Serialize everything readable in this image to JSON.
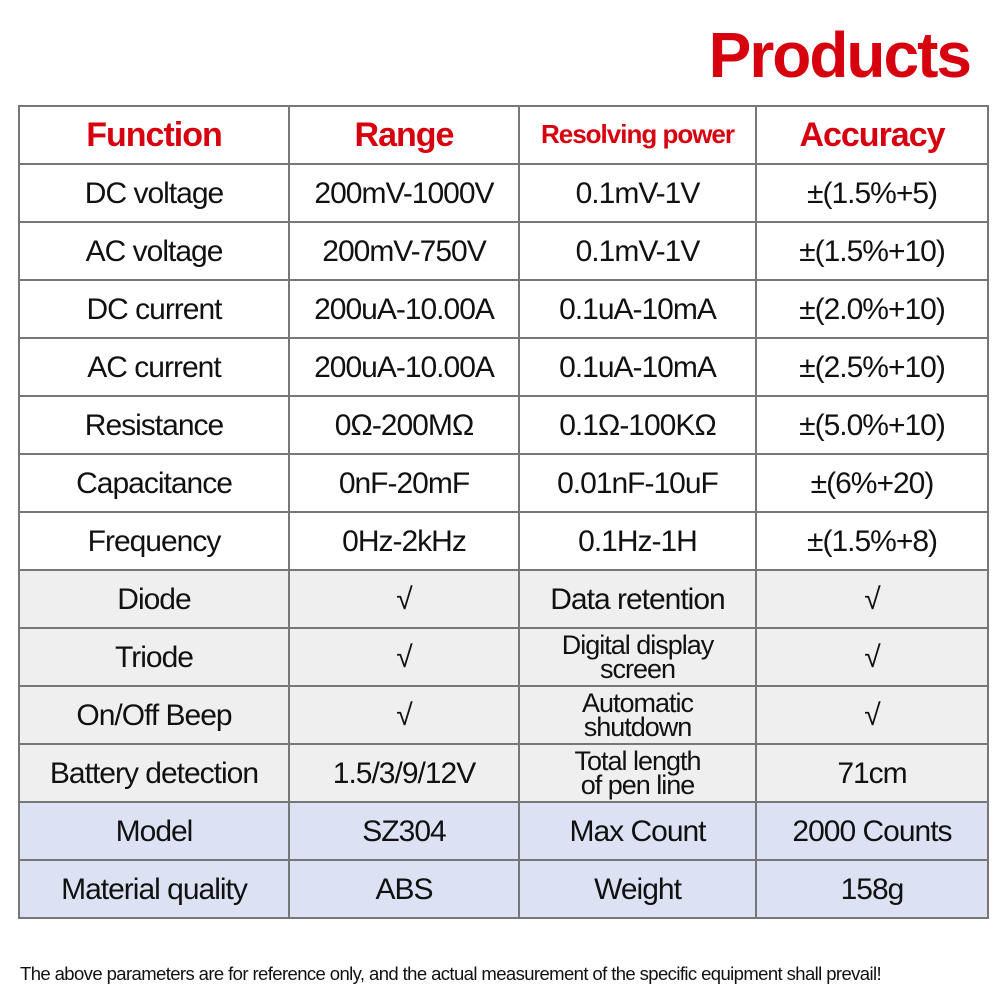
{
  "header": {
    "title": "Products"
  },
  "table": {
    "header": [
      "Function",
      "Range",
      "Resolving power",
      "Accuracy"
    ],
    "rows": [
      [
        "DC voltage",
        "200mV-1000V",
        "0.1mV-1V",
        "±(1.5%+5)"
      ],
      [
        "AC voltage",
        "200mV-750V",
        "0.1mV-1V",
        "±(1.5%+10)"
      ],
      [
        "DC current",
        "200uA-10.00A",
        "0.1uA-10mA",
        "±(2.0%+10)"
      ],
      [
        "AC current",
        "200uA-10.00A",
        "0.1uA-10mA",
        "±(2.5%+10)"
      ],
      [
        "Resistance",
        "0Ω-200MΩ",
        "0.1Ω-100KΩ",
        "±(5.0%+10)"
      ],
      [
        "Capacitance",
        "0nF-20mF",
        "0.01nF-10uF",
        "±(6%+20)"
      ],
      [
        "Frequency",
        "0Hz-2kHz",
        "0.1Hz-1H",
        "±(1.5%+8)"
      ],
      [
        "Diode",
        "√",
        "Data retention",
        "√"
      ],
      [
        "Triode",
        "√",
        "Digital display\nscreen",
        "√"
      ],
      [
        "On/Off Beep",
        "√",
        "Automatic\nshutdown",
        "√"
      ],
      [
        "Battery detection",
        "1.5/3/9/12V",
        "Total length\nof pen line",
        "71cm"
      ],
      [
        "Model",
        "SZ304",
        "Max Count",
        "2000 Counts"
      ],
      [
        "Material quality",
        "ABS",
        "Weight",
        "158g"
      ]
    ]
  },
  "footer": {
    "note": "The above parameters are for reference only, and the actual measurement of the specific equipment shall prevail!"
  }
}
